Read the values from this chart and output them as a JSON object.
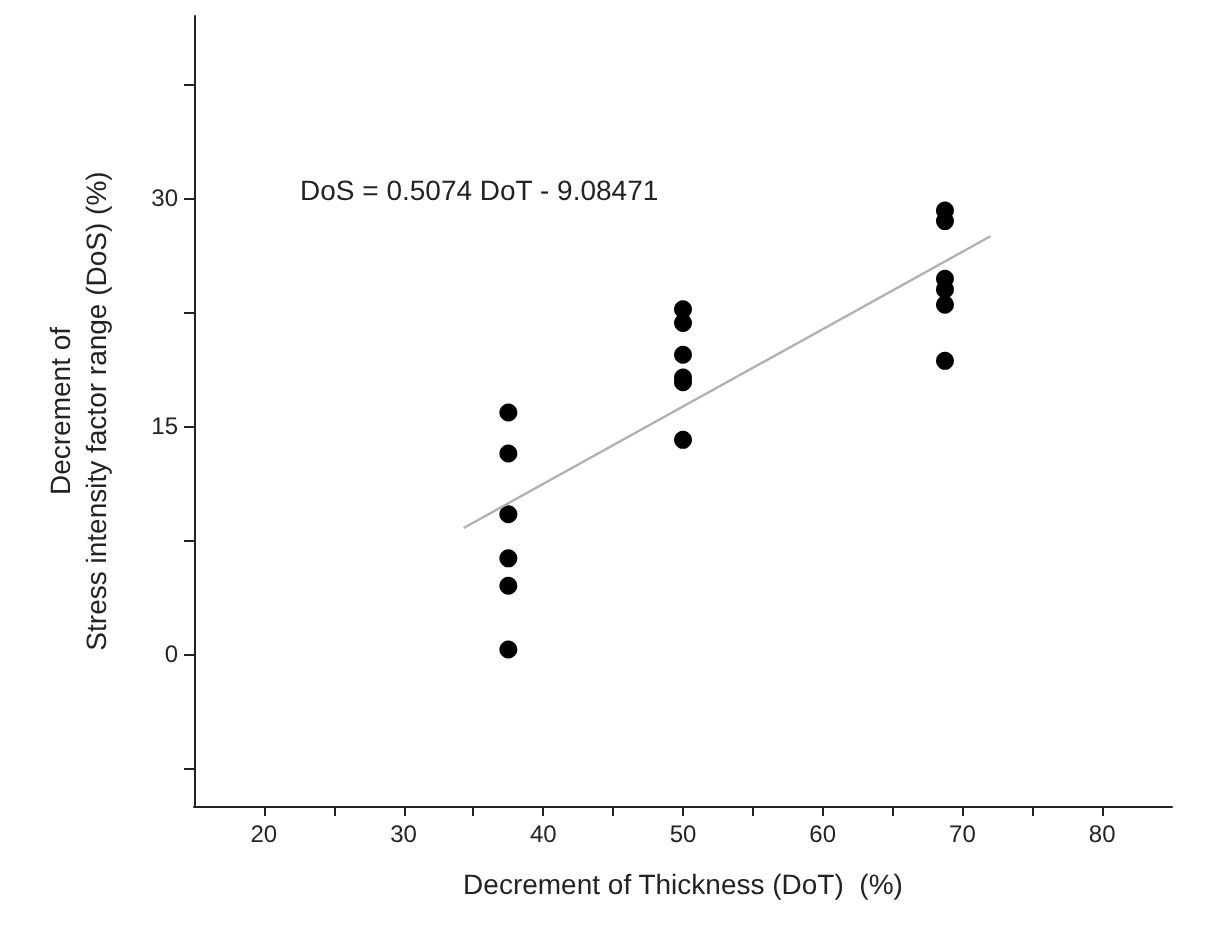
{
  "chart_data": {
    "type": "scatter",
    "xlabel": "Decrement of Thickness (DoT)  (%)",
    "ylabel": "Decrement of\nStress intensity factor range (DoS) (%)",
    "annotations": [
      "DoS = 0.5074 DoT - 9.08471"
    ],
    "series": [
      {
        "type": "scatter",
        "color": "#000000",
        "marker": "circle",
        "x": [
          37.5,
          37.5,
          37.5,
          37.5,
          37.5,
          37.5,
          50,
          50,
          50,
          50,
          50,
          50,
          68.75,
          68.75,
          68.75,
          68.75,
          68.75,
          68.75
        ],
        "values": [
          15.9,
          13.2,
          9.2,
          6.3,
          4.5,
          0.3,
          22.7,
          21.8,
          19.7,
          18.2,
          17.9,
          14.1,
          29.2,
          28.5,
          24.7,
          24.0,
          23.0,
          19.3
        ]
      },
      {
        "type": "line",
        "color": "#b0b0b0",
        "marker": "none",
        "line_style": "solid",
        "x": [
          34.3,
          72
        ],
        "values": [
          8.3,
          27.5
        ]
      }
    ],
    "xlim": [
      15,
      85
    ],
    "xticks": [
      20,
      {
        "value": 25,
        "label": null
      },
      30,
      {
        "value": 35,
        "label": null
      },
      40,
      {
        "value": 45,
        "label": null
      },
      50,
      {
        "value": 55,
        "label": null
      },
      60,
      {
        "value": 65,
        "label": null
      },
      70,
      {
        "value": 75,
        "label": null
      },
      80
    ],
    "ylim": [
      -10,
      42
    ],
    "yticks": [
      {
        "value": -7.5,
        "label": null
      },
      0,
      {
        "value": 7.5,
        "label": null
      },
      15,
      {
        "value": 22.5,
        "label": null
      },
      30,
      {
        "value": 37.5,
        "label": null
      }
    ],
    "grid": false
  }
}
